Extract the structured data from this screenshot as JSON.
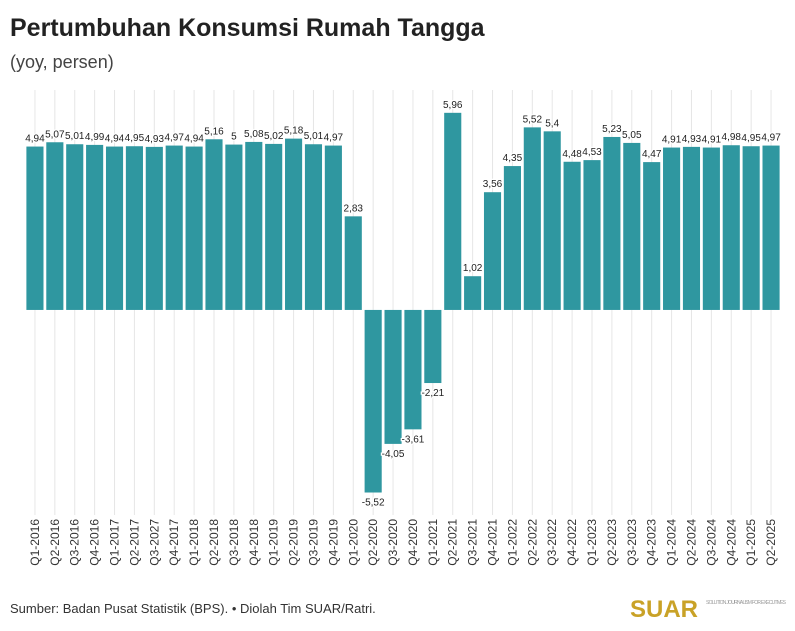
{
  "chart_data": {
    "type": "bar",
    "title": "Pertumbuhan Konsumsi Rumah Tangga",
    "subtitle": "(yoy, persen)",
    "source": "Sumber: Badan Pusat Statistik (BPS). • Diolah Tim SUAR/Ratri.",
    "logo": "SUAR",
    "logo_tagline": "SOLUTION JOURNALISM FOR EXECUTIVES",
    "categories": [
      "Q1-2016",
      "Q2-2016",
      "Q3-2016",
      "Q4-2016",
      "Q1-2017",
      "Q2-2017",
      "Q3-2027",
      "Q4-2017",
      "Q1-2018",
      "Q2-2018",
      "Q3-2018",
      "Q4-2018",
      "Q1-2019",
      "Q2-2019",
      "Q3-2019",
      "Q4-2019",
      "Q1-2020",
      "Q2-2020",
      "Q3-2020",
      "Q4-2020",
      "Q1-2021",
      "Q2-2021",
      "Q3-2021",
      "Q4-2021",
      "Q1-2022",
      "Q2-2022",
      "Q3-2022",
      "Q4-2022",
      "Q1-2023",
      "Q2-2023",
      "Q3-2023",
      "Q4-2023",
      "Q1-2024",
      "Q2-2024",
      "Q3-2024",
      "Q4-2024",
      "Q1-2025",
      "Q2-2025"
    ],
    "values": [
      4.94,
      5.07,
      5.01,
      4.99,
      4.94,
      4.95,
      4.93,
      4.97,
      4.94,
      5.16,
      5,
      5.08,
      5.02,
      5.18,
      5.01,
      4.97,
      2.83,
      -5.52,
      -4.05,
      -3.61,
      -2.21,
      5.96,
      1.02,
      3.56,
      4.35,
      5.52,
      5.4,
      4.48,
      4.53,
      5.23,
      5.05,
      4.47,
      4.91,
      4.93,
      4.91,
      4.98,
      4.95,
      4.97
    ],
    "value_labels": [
      "4,94",
      "5,07",
      "5,01",
      "4,99",
      "4,94",
      "4,95",
      "4,93",
      "4,97",
      "4,94",
      "5,16",
      "5",
      "5,08",
      "5,02",
      "5,18",
      "5,01",
      "4,97",
      "2,83",
      "-5,52",
      "-4,05",
      "-3,61",
      "-2,21",
      "5,96",
      "1,02",
      "3,56",
      "4,35",
      "5,52",
      "5,4",
      "4,48",
      "4,53",
      "5,23",
      "5,05",
      "4,47",
      "4,91",
      "4,93",
      "4,91",
      "4,98",
      "4,95",
      "4,97"
    ],
    "color": "#2f97a0",
    "ylim": [
      -6.2,
      6.65
    ],
    "grid": true
  }
}
